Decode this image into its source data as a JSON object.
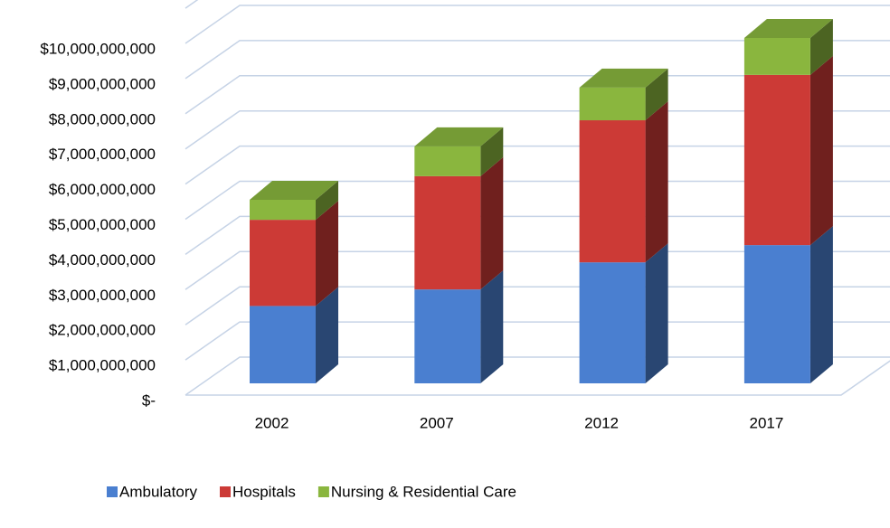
{
  "chart_data": {
    "type": "bar3d_stacked",
    "categories": [
      "2002",
      "2007",
      "2012",
      "2017"
    ],
    "series": [
      {
        "name": "Ambulatory",
        "color": "#4a7fd0",
        "values": [
          2200000000,
          2670000000,
          3440000000,
          3930000000
        ]
      },
      {
        "name": "Hospitals",
        "color": "#cc3a36",
        "values": [
          2450000000,
          3220000000,
          4040000000,
          4840000000
        ]
      },
      {
        "name": "Nursing & Residential Care",
        "color": "#8ab63e",
        "values": [
          570000000,
          850000000,
          930000000,
          1050000000
        ]
      }
    ],
    "ylim": [
      0,
      11000000000
    ],
    "yticks": [
      {
        "value": 0,
        "label": "$-"
      },
      {
        "value": 1000000000,
        "label": "$1,000,000,000"
      },
      {
        "value": 2000000000,
        "label": "$2,000,000,000"
      },
      {
        "value": 3000000000,
        "label": "$3,000,000,000"
      },
      {
        "value": 4000000000,
        "label": "$4,000,000,000"
      },
      {
        "value": 5000000000,
        "label": "$5,000,000,000"
      },
      {
        "value": 6000000000,
        "label": "$6,000,000,000"
      },
      {
        "value": 7000000000,
        "label": "$7,000,000,000"
      },
      {
        "value": 8000000000,
        "label": "$8,000,000,000"
      },
      {
        "value": 9000000000,
        "label": "$9,000,000,000"
      },
      {
        "value": 10000000000,
        "label": "$10,000,000,000"
      }
    ],
    "grid": true,
    "legend": "bottom"
  }
}
